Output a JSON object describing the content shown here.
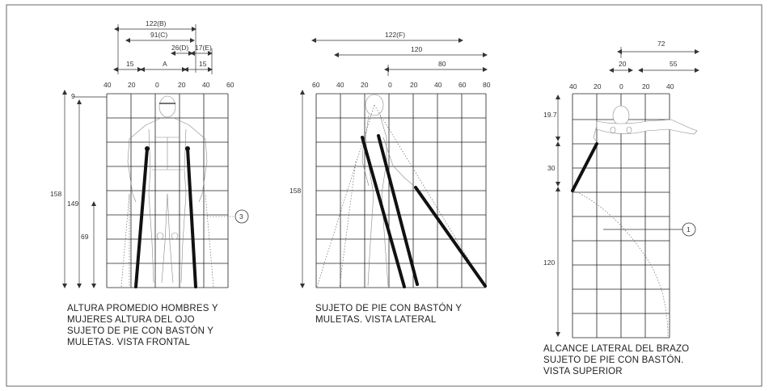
{
  "frontal": {
    "top_dims": [
      "122(B)",
      "91(C)",
      "26(D)",
      "17(E)",
      "15",
      "A",
      "15"
    ],
    "scale": [
      "40",
      "20",
      "0",
      "20",
      "40",
      "60"
    ],
    "heights": [
      "9",
      "158",
      "149",
      "69"
    ],
    "callout": "3",
    "caption": [
      "ALTURA PROMEDIO HOMBRES Y",
      "MUJERES ALTURA DEL OJO",
      "SUJETO DE PIE CON BASTÓN Y",
      "MULETAS. VISTA FRONTAL"
    ]
  },
  "lateral": {
    "top_dims": [
      "122(F)",
      "120",
      "80"
    ],
    "scale": [
      "60",
      "40",
      "20",
      "0",
      "20",
      "40",
      "60",
      "80"
    ],
    "heights": [
      "158"
    ],
    "caption": [
      "SUJETO DE PIE CON BASTÓN Y",
      "MULETAS. VISTA LATERAL"
    ]
  },
  "superior": {
    "top_dims": [
      "72",
      "20",
      "55"
    ],
    "scale": [
      "40",
      "20",
      "0",
      "20",
      "40"
    ],
    "heights": [
      "19.7",
      "30",
      "120"
    ],
    "callout": "1",
    "caption": [
      "ALCANCE LATERAL DEL BRAZO",
      "SUJETO DE PIE CON BASTÓN.",
      "VISTA SUPERIOR"
    ]
  }
}
